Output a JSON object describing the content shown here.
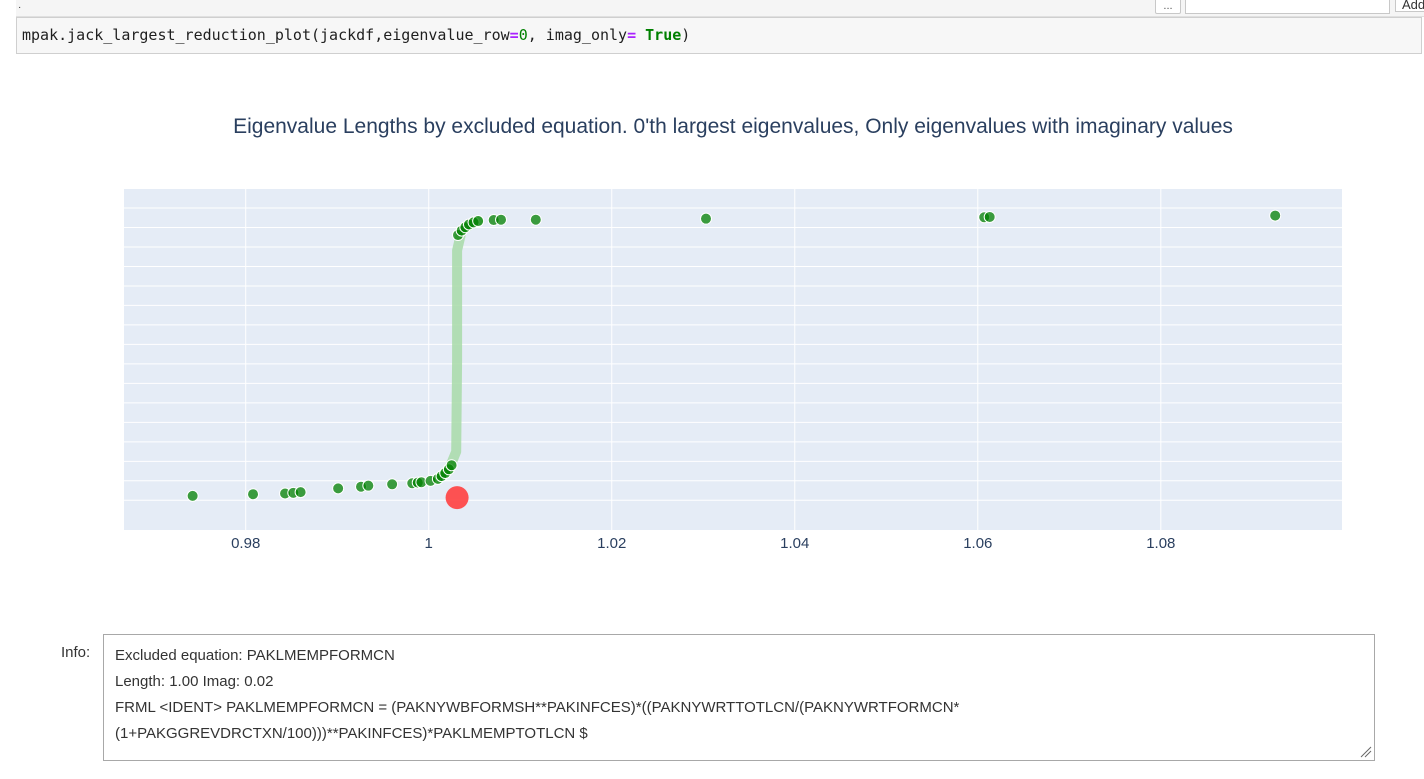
{
  "toolbar": {
    "ellipsis_label": "...",
    "search_value": "",
    "add_label": "Add"
  },
  "code_cell": {
    "prompt_marker": "·",
    "tokens": {
      "fn": "mpak.jack_largest_reduction_plot(jackdf,eigenvalue_row",
      "eq1": "=",
      "num": "0",
      "mid": ", imag_only",
      "eq2": "=",
      "space": " ",
      "kw": "True",
      "close": ")"
    }
  },
  "colors": {
    "plot_bg": "#e5ecf6",
    "point": "#008000",
    "selected_point": "#ff4040",
    "path": "#a8dba8",
    "title": "#2a3f5f"
  },
  "chart_data": {
    "type": "scatter",
    "title": "Eigenvalue Lengths by excluded equation. 0'th largest eigenvalues, Only eigenvalues with imaginary values",
    "xlabel": "",
    "ylabel": "",
    "x_ticks": [
      "0.98",
      "1",
      "1.02",
      "1.04",
      "1.06",
      "1.08"
    ],
    "xlim": [
      0.9667,
      1.0998
    ],
    "ylim": [
      0,
      1
    ],
    "grid": true,
    "legend": "none",
    "points": [
      {
        "x": 0.9742,
        "y": 0.1
      },
      {
        "x": 0.9808,
        "y": 0.105
      },
      {
        "x": 0.9843,
        "y": 0.107
      },
      {
        "x": 0.9852,
        "y": 0.109
      },
      {
        "x": 0.986,
        "y": 0.111
      },
      {
        "x": 0.9901,
        "y": 0.122
      },
      {
        "x": 0.9926,
        "y": 0.127
      },
      {
        "x": 0.9934,
        "y": 0.13
      },
      {
        "x": 0.996,
        "y": 0.134
      },
      {
        "x": 0.9982,
        "y": 0.137
      },
      {
        "x": 0.9988,
        "y": 0.139
      },
      {
        "x": 0.9992,
        "y": 0.14
      },
      {
        "x": 1.0002,
        "y": 0.144
      },
      {
        "x": 1.001,
        "y": 0.15
      },
      {
        "x": 1.0014,
        "y": 0.158
      },
      {
        "x": 1.0018,
        "y": 0.167
      },
      {
        "x": 1.0022,
        "y": 0.178
      },
      {
        "x": 1.0025,
        "y": 0.19
      },
      {
        "x": 1.0032,
        "y": 0.865
      },
      {
        "x": 1.0036,
        "y": 0.878
      },
      {
        "x": 1.004,
        "y": 0.888
      },
      {
        "x": 1.0044,
        "y": 0.896
      },
      {
        "x": 1.0049,
        "y": 0.902
      },
      {
        "x": 1.0054,
        "y": 0.906
      },
      {
        "x": 1.0071,
        "y": 0.909
      },
      {
        "x": 1.0079,
        "y": 0.91
      },
      {
        "x": 1.0117,
        "y": 0.91
      },
      {
        "x": 1.0303,
        "y": 0.913
      },
      {
        "x": 1.0607,
        "y": 0.917
      },
      {
        "x": 1.0613,
        "y": 0.918
      },
      {
        "x": 1.0925,
        "y": 0.922
      }
    ],
    "path": [
      {
        "x": 1.001,
        "y": 0.15
      },
      {
        "x": 1.0022,
        "y": 0.178
      },
      {
        "x": 1.003,
        "y": 0.23
      },
      {
        "x": 1.0031,
        "y": 0.5
      },
      {
        "x": 1.0031,
        "y": 0.82
      },
      {
        "x": 1.0036,
        "y": 0.878
      },
      {
        "x": 1.0049,
        "y": 0.902
      },
      {
        "x": 1.0054,
        "y": 0.906
      }
    ],
    "selected": {
      "x": 1.0031,
      "y": 0.095
    }
  },
  "info": {
    "label": "Info:",
    "lines": [
      "Excluded equation: PAKLMEMPFORMCN",
      "Length: 1.00   Imag: 0.02",
      "FRML <IDENT> PAKLMEMPFORMCN = (PAKNYWBFORMSH**PAKINFCES)*((PAKNYWRTTOTLCN/(PAKNYWRTFORMCN*",
      "(1+PAKGGREVDRCTXN/100)))**PAKINFCES)*PAKLMEMPTOTLCN $"
    ]
  }
}
